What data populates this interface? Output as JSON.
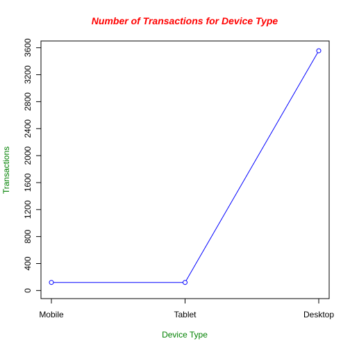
{
  "chart_data": {
    "type": "line",
    "title": "Number of Transactions for Device Type",
    "xlabel": "Device Type",
    "ylabel": "Transactions",
    "categories": [
      "Mobile",
      "Tablet",
      "Desktop"
    ],
    "values": [
      120,
      120,
      3555
    ],
    "ylim": [
      -120,
      3700
    ],
    "yticks": [
      0,
      400,
      800,
      1200,
      1600,
      2000,
      2400,
      2800,
      3200,
      3600
    ],
    "ytick_labels": [
      "0",
      "400",
      "800",
      "1200",
      "1600",
      "2000",
      "2400",
      "2800",
      "3200",
      "3600"
    ],
    "grid": false,
    "legend": "none",
    "marker": "open-circle"
  },
  "colors": {
    "title": "#ff0000",
    "axis_titles": "#008000",
    "series": "#0000ff",
    "axes": "#000000"
  }
}
